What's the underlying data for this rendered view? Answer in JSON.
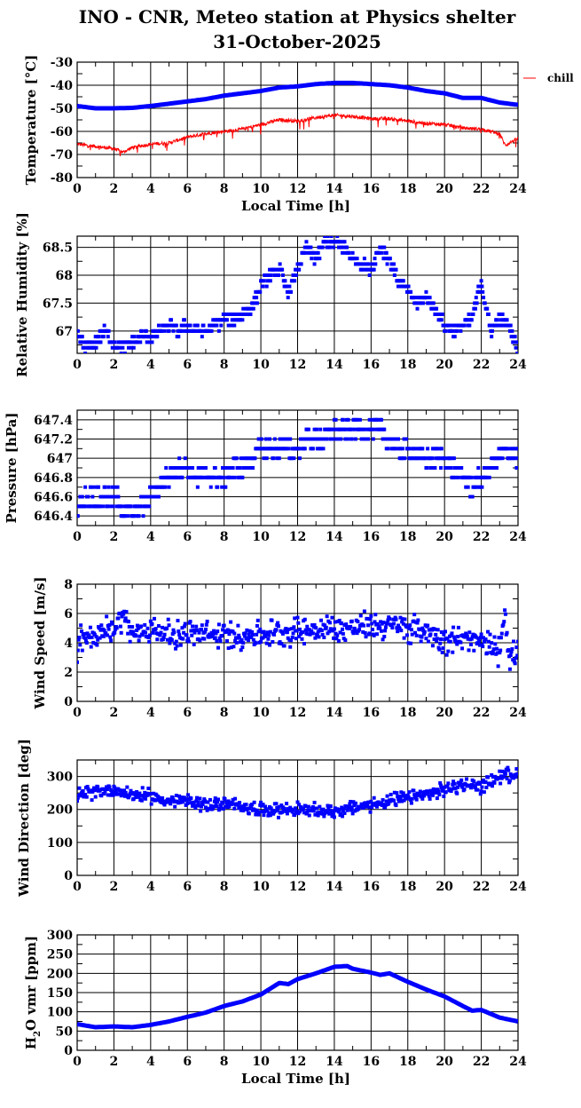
{
  "title": "INO - CNR, Meteo station at Physics shelter",
  "subtitle": "31-October-2025",
  "colors": {
    "blue": "#0000ff",
    "red": "#ff0000",
    "grid": "#000000"
  },
  "chart_data": [
    {
      "id": "temp",
      "type": "line",
      "title": "",
      "xlabel": "Local Time [h]",
      "ylabel": "Temperature [°C]",
      "xlim": [
        0,
        24
      ],
      "ylim": [
        -80,
        -30
      ],
      "ystep": 10,
      "xticks": [
        0,
        2,
        4,
        6,
        8,
        10,
        12,
        14,
        16,
        18,
        20,
        22,
        24
      ],
      "grid": true,
      "legend": {
        "placement": "right-top",
        "entries": [
          "chill"
        ]
      },
      "series": [
        {
          "name": "temperature",
          "color": "#0000ff",
          "style": "thick",
          "x": [
            0,
            1,
            2,
            3,
            4,
            5,
            6,
            7,
            8,
            9,
            10,
            11,
            12,
            13,
            14,
            15,
            16,
            17,
            18,
            19,
            20,
            21,
            22,
            23,
            24
          ],
          "y": [
            -49,
            -50,
            -50,
            -49.8,
            -49,
            -48,
            -47,
            -46,
            -44.5,
            -43.5,
            -42.5,
            -41,
            -40.5,
            -39.5,
            -39,
            -39,
            -39.5,
            -40,
            -41,
            -42.5,
            -43.5,
            -45.5,
            -45.5,
            -47.5,
            -48.5
          ]
        },
        {
          "name": "chill",
          "color": "#ff0000",
          "style": "noisy-line",
          "spread": 1.5,
          "x": [
            0,
            1,
            2,
            2.5,
            3,
            4,
            5,
            6,
            7,
            8,
            9,
            10,
            11,
            12,
            13,
            14,
            15,
            16,
            17,
            18,
            19,
            20,
            21,
            22,
            23,
            23.3,
            24
          ],
          "y": [
            -65.5,
            -66.5,
            -67.5,
            -69,
            -67,
            -65.5,
            -65,
            -62.5,
            -61,
            -60,
            -59,
            -57,
            -55,
            -55.5,
            -54,
            -53,
            -53.5,
            -54.5,
            -54.5,
            -55.5,
            -56.5,
            -57,
            -58.5,
            -59,
            -61,
            -66,
            -63
          ]
        }
      ]
    },
    {
      "id": "hum",
      "type": "scatter",
      "xlabel": "",
      "ylabel": "Relative Humidity [%]",
      "xlim": [
        0,
        24
      ],
      "ylim": [
        66.6,
        68.7
      ],
      "yticks": [
        67,
        67.5,
        68,
        68.5
      ],
      "ytick_labels": [
        "67",
        "67.5",
        "68",
        "68.5"
      ],
      "xticks": [
        0,
        2,
        4,
        6,
        8,
        10,
        12,
        14,
        16,
        18,
        20,
        22,
        24
      ],
      "grid": true,
      "series": [
        {
          "name": "humidity",
          "color": "#0000ff",
          "spread": 0.1,
          "quant": 0.1,
          "x": [
            0,
            0.5,
            1,
            1.5,
            2,
            2.5,
            3,
            3.5,
            4,
            4.5,
            5,
            5.5,
            6,
            6.5,
            7,
            7.5,
            8,
            8.5,
            9,
            9.5,
            10,
            10.5,
            11,
            11.5,
            12,
            12.5,
            13,
            13.5,
            14,
            14.5,
            15,
            15.5,
            16,
            16.5,
            17,
            17.5,
            18,
            18.5,
            19,
            19.5,
            20,
            20.5,
            21,
            21.5,
            22,
            22.5,
            23,
            23.5,
            24
          ],
          "y": [
            66.9,
            66.7,
            66.8,
            67,
            66.8,
            66.7,
            66.8,
            66.9,
            66.9,
            67,
            67.1,
            67,
            67.1,
            67,
            67,
            67.1,
            67.2,
            67.2,
            67.3,
            67.4,
            67.8,
            68,
            68.1,
            67.7,
            68.1,
            68.5,
            68.3,
            68.6,
            68.6,
            68.5,
            68.3,
            68.2,
            68.1,
            68.5,
            68.3,
            67.9,
            67.7,
            67.5,
            67.6,
            67.4,
            67.1,
            67,
            67.1,
            67.2,
            67.9,
            67,
            67.2,
            67.1,
            66.7
          ]
        }
      ]
    },
    {
      "id": "pres",
      "type": "scatter",
      "xlabel": "",
      "ylabel": "Pressure [hPa]",
      "xlim": [
        0,
        24
      ],
      "ylim": [
        646.3,
        647.5
      ],
      "yticks": [
        646.4,
        646.6,
        646.8,
        647,
        647.2,
        647.4
      ],
      "ytick_labels": [
        "646.4",
        "646.6",
        "646.8",
        "647",
        "647.2",
        "647.4"
      ],
      "xticks": [
        0,
        2,
        4,
        6,
        8,
        10,
        12,
        14,
        16,
        18,
        20,
        22,
        24
      ],
      "grid": true,
      "series": [
        {
          "name": "pressure",
          "color": "#0000ff",
          "spread": 0.1,
          "quant": 0.1,
          "x": [
            0,
            0.5,
            1,
            1.5,
            2,
            2.5,
            3,
            3.5,
            4,
            4.5,
            5,
            5.5,
            6,
            6.5,
            7,
            7.5,
            8,
            8.5,
            9,
            9.5,
            10,
            10.5,
            11,
            11.5,
            12,
            12.5,
            13,
            13.5,
            14,
            14.5,
            15,
            15.5,
            16,
            16.5,
            17,
            17.5,
            18,
            18.5,
            19,
            19.5,
            20,
            20.5,
            21,
            21.5,
            22,
            22.5,
            23,
            23.5,
            24
          ],
          "y": [
            646.5,
            646.6,
            646.6,
            646.6,
            646.6,
            646.5,
            646.4,
            646.5,
            646.6,
            646.7,
            646.8,
            646.9,
            646.9,
            646.8,
            646.8,
            646.8,
            646.8,
            646.9,
            646.9,
            647,
            647.1,
            647.1,
            647.1,
            647.1,
            647.1,
            647.2,
            647.2,
            647.2,
            647.3,
            647.3,
            647.3,
            647.3,
            647.3,
            647.3,
            647.2,
            647.1,
            647.1,
            647,
            647,
            647,
            647,
            646.9,
            646.8,
            646.7,
            646.8,
            646.9,
            647,
            647.1,
            647
          ]
        }
      ]
    },
    {
      "id": "ws",
      "type": "scatter",
      "xlabel": "",
      "ylabel": "Wind Speed [m/s]",
      "xlim": [
        0,
        24
      ],
      "ylim": [
        0,
        8
      ],
      "ystep": 2,
      "xticks": [
        0,
        2,
        4,
        6,
        8,
        10,
        12,
        14,
        16,
        18,
        20,
        22,
        24
      ],
      "grid": true,
      "series": [
        {
          "name": "wind speed",
          "color": "#0000ff",
          "spread": 0.9,
          "x": [
            0,
            0.1,
            1,
            2,
            2.5,
            3,
            4,
            5,
            6,
            7,
            8,
            9,
            10,
            11,
            12,
            13,
            14,
            15,
            16,
            17,
            18,
            19,
            20,
            21,
            22,
            23,
            23.3,
            23.5,
            24
          ],
          "y": [
            2.5,
            4.2,
            4.5,
            5,
            6,
            4.5,
            5,
            4.5,
            4.7,
            4.5,
            4.5,
            4.5,
            4.6,
            4.7,
            4.8,
            4.9,
            5,
            5,
            5.2,
            5.2,
            5,
            4.8,
            4.3,
            4.2,
            4,
            3.5,
            6.5,
            3,
            3.3
          ]
        }
      ]
    },
    {
      "id": "wd",
      "type": "scatter",
      "xlabel": "",
      "ylabel": "Wind Direction [deg]",
      "xlim": [
        0,
        24
      ],
      "ylim": [
        0,
        350
      ],
      "ystep": 100,
      "xticks": [
        0,
        2,
        4,
        6,
        8,
        10,
        12,
        14,
        16,
        18,
        20,
        22,
        24
      ],
      "grid": true,
      "series": [
        {
          "name": "wind direction",
          "color": "#0000ff",
          "spread": 20,
          "x": [
            0,
            1,
            2,
            3,
            4,
            5,
            6,
            7,
            8,
            9,
            10,
            11,
            12,
            13,
            14,
            15,
            16,
            17,
            18,
            19,
            20,
            21,
            22,
            23,
            24
          ],
          "y": [
            240,
            255,
            260,
            245,
            240,
            225,
            225,
            215,
            215,
            210,
            200,
            200,
            200,
            195,
            195,
            205,
            215,
            225,
            235,
            245,
            260,
            275,
            270,
            300,
            310
          ]
        }
      ]
    },
    {
      "id": "h2o",
      "type": "line",
      "xlabel": "Local Time [h]",
      "ylabel": "H2O vmr [ppm]",
      "xlim": [
        0,
        24
      ],
      "ylim": [
        0,
        300
      ],
      "ystep": 50,
      "xticks": [
        0,
        2,
        4,
        6,
        8,
        10,
        12,
        14,
        16,
        18,
        20,
        22,
        24
      ],
      "grid": true,
      "series": [
        {
          "name": "H2O vmr",
          "color": "#0000ff",
          "style": "thick",
          "x": [
            0,
            1,
            2,
            3,
            4,
            5,
            6,
            7,
            8,
            9,
            10,
            11,
            11.5,
            12,
            13,
            14,
            14.7,
            15,
            16,
            16.5,
            17,
            18,
            19,
            20,
            21,
            21.5,
            22,
            23,
            24
          ],
          "y": [
            68,
            60,
            62,
            60,
            66,
            75,
            87,
            98,
            115,
            127,
            145,
            175,
            172,
            185,
            200,
            217,
            219,
            212,
            202,
            196,
            200,
            178,
            158,
            140,
            115,
            103,
            105,
            85,
            75
          ]
        }
      ]
    }
  ]
}
